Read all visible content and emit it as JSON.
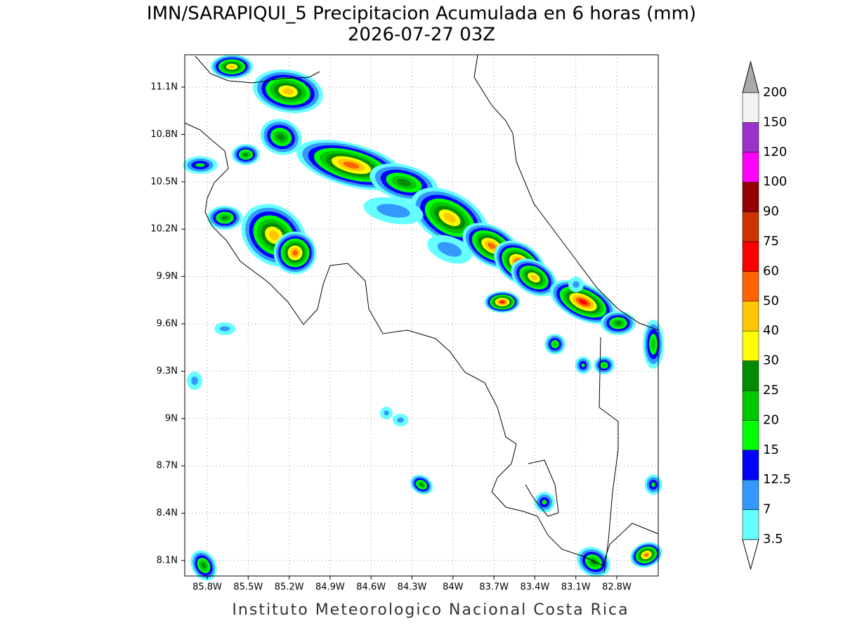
{
  "header": {
    "title": "IMN/SARAPIQUI_5 Precipitacion Acumulada en 6 horas (mm)",
    "subtitle": "2026-07-27 03Z"
  },
  "map": {
    "lat_labels": [
      "11.1N",
      "10.8N",
      "10.5N",
      "10.2N",
      "9.9N",
      "9.6N",
      "9.3N",
      "9N",
      "8.7N",
      "8.4N",
      "8.1N"
    ],
    "lon_labels": [
      "85.8W",
      "85.5W",
      "85.2W",
      "84.9W",
      "84.6W",
      "84.3W",
      "84W",
      "83.7W",
      "83.4W",
      "83.1W",
      "82.8W"
    ]
  },
  "colorbar": {
    "levels": [
      3.5,
      7,
      12.5,
      15,
      20,
      25,
      30,
      40,
      50,
      60,
      75,
      90,
      100,
      120,
      150,
      200
    ],
    "colors": [
      "#66ffff",
      "#3399ff",
      "#0000ff",
      "#00ff00",
      "#00c800",
      "#008c00",
      "#ffff00",
      "#ffc800",
      "#ff6400",
      "#ff0000",
      "#cc3300",
      "#960000",
      "#ff00ff",
      "#9933cc",
      "#f2f2f2"
    ],
    "under_color": "#ffffff",
    "over_color": "#aaaaaa"
  },
  "footer": "Instituto Meteorologico Nacional Costa Rica"
}
